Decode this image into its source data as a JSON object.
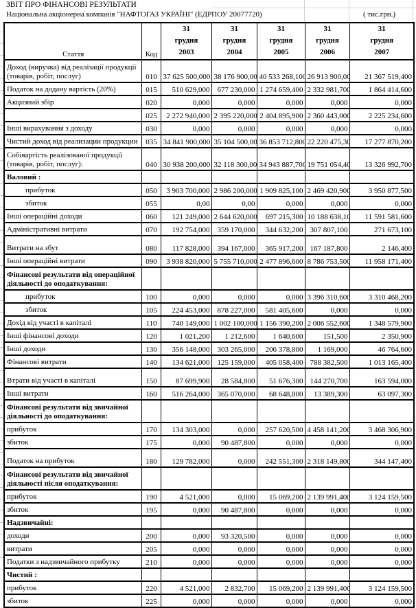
{
  "title": "ЗВІТ ПРО ФІНАНСОВІ РЕЗУЛЬТАТИ",
  "subtitle": "Національна акціонерна компанія \"НАФТОГАЗ УКРАЇНІ\"  (ЕДРПОУ 20077720)",
  "units": "( тис.грн.)",
  "colors": {
    "grid": "#000000",
    "faint_grid": "#d4d4d4",
    "text": "#000000",
    "background": "#ffffff"
  },
  "table": {
    "col_article": "Стаття",
    "col_code": "Код",
    "year_cols": [
      {
        "day": "31",
        "month": "грудня",
        "year": "2003"
      },
      {
        "day": "31",
        "month": "грудня",
        "year": "2004"
      },
      {
        "day": "31",
        "month": "грудня",
        "year": "2005"
      },
      {
        "day": "31",
        "month": "грудня",
        "year": "2006"
      },
      {
        "day": "31",
        "month": "грудня",
        "year": "2007"
      }
    ],
    "rows": [
      {
        "label": "Доход (виручка) від реалізації продукції (товарів, робіт, послуг)",
        "code": "010",
        "values": [
          "37 625 500,000",
          "38 176 900,000",
          "40 533 268,100",
          "26 913 900,000",
          "21 367 519,400"
        ],
        "h": 2
      },
      {
        "label": "Податок на додану вартість (20%)",
        "code": "015",
        "values": [
          "510 629,000",
          "677 230,000",
          "1 274 659,400",
          "2 332 981,700",
          "1 864 414,600"
        ]
      },
      {
        "label": "Акцизний збір",
        "code": "020",
        "values": [
          "0,000",
          "0,000",
          "0,000",
          "0,000",
          "0,000"
        ]
      },
      {
        "label": "",
        "code": "025",
        "values": [
          "2 272 940,000",
          "2 395 220,000",
          "2 404 895,900",
          "2 360 443,000",
          "2 225 234,600"
        ]
      },
      {
        "label": "Інші вирахування з доходу",
        "code": "030",
        "values": [
          "0,000",
          "0,000",
          "0,000",
          "0,000",
          "0,000"
        ]
      },
      {
        "label": "Чистий доход  від реализации продукции",
        "code": "035",
        "values": [
          "34 841 900,000",
          "35 104 500,000",
          "36 853 712,800",
          "22 220 475,300",
          "17 277 870,200"
        ]
      },
      {
        "label": "Собівартість реалізованої продукції (товарів, робіт, послуг):",
        "code": "040",
        "values": [
          "30 938 200,000",
          "32 118 300,000",
          "34 943 887,700",
          "19 751 054,400",
          "13 326 992,700"
        ],
        "h": 2
      },
      {
        "label": "Валовий :",
        "section": true
      },
      {
        "label": "прибуток",
        "code": "050",
        "indent": true,
        "values": [
          "3 903 700,000",
          "2 986 200,000",
          "1 909 825,100",
          "2 469 420,900",
          "3 950 877,500"
        ]
      },
      {
        "label": "збиток",
        "code": "055",
        "indent": true,
        "values": [
          "0,00",
          "0,00",
          "0,000",
          "0,000",
          "0,000"
        ]
      },
      {
        "label": "Інші операційні доходи",
        "code": "060",
        "values": [
          "121 249,000",
          "2 644 620,000",
          "697 215,300",
          "10 188 638,100",
          "11 591 581,600"
        ]
      },
      {
        "label": "Адміністративні витрати",
        "code": "070",
        "values": [
          "192 754,000",
          "359 170,000",
          "344 632,200",
          "307 807,100",
          "271 673,100"
        ]
      },
      {
        "label": "Витрати на збут",
        "code": "080",
        "tall": true,
        "values": [
          "117 828,000",
          "394 167,000",
          "365 917,200",
          "167 187,800",
          "2 146,400"
        ]
      },
      {
        "label": "Інші операційні витрати",
        "code": "090",
        "values": [
          "3 938 820,000",
          "5 755 710,000",
          "2 477 896,600",
          "8 786 753,500",
          "11 958 171,400"
        ]
      },
      {
        "label": "Фінансові результати від операційної діяльності до оподаткування:",
        "section": true,
        "h": 2
      },
      {
        "label": "прибуток",
        "code": "100",
        "indent": true,
        "values": [
          "0,000",
          "0,000",
          "0,000",
          "3 396 310,600",
          "3 310 468,200"
        ]
      },
      {
        "label": "збиток",
        "code": "105",
        "indent": true,
        "values": [
          "224 453,000",
          "878 227,000",
          "581 405,600",
          "0,000",
          "0,000"
        ]
      },
      {
        "label": "Дохід від участі в капіталі",
        "code": "110",
        "values": [
          "740 149,000",
          "1 002 100,000",
          "1 156 390,200",
          "2 006 552,600",
          "1 348 579,900"
        ]
      },
      {
        "label": "Інші фінансові доходи",
        "code": "120",
        "values": [
          "1 021,200",
          "1 212,600",
          "1 640,600",
          "151,500",
          "2 350,900"
        ]
      },
      {
        "label": "Інші доходи",
        "code": "130",
        "values": [
          "356 148,000",
          "303 265,000",
          "206 378,800",
          "1 169,000",
          "46 764,600"
        ]
      },
      {
        "label": "Фінансові витрати",
        "code": "140",
        "values": [
          "134 621,000",
          "125 159,000",
          "405 058,400",
          "788 382,500",
          "1 013 165,400"
        ]
      },
      {
        "label": "Втрати від участі в капіталі",
        "code": "150",
        "tall": true,
        "values": [
          "87 699,900",
          "28 584,800",
          "51 676,300",
          "144 270,700",
          "163 594,000"
        ]
      },
      {
        "label": "Інші витрати",
        "code": "160",
        "values": [
          "516 264,000",
          "365 070,000",
          "68 648,800",
          "13 389,300",
          "63 097,300"
        ]
      },
      {
        "label": "Фінансові результати від звичайної діяльності до оподаткування:",
        "section": true,
        "h": 2
      },
      {
        "label": "прибуток",
        "code": "170",
        "values": [
          "134 303,000",
          "0,000",
          "257 620,500",
          "4 458 141,200",
          "3 468 306,900"
        ]
      },
      {
        "label": "збиток",
        "code": "175",
        "values": [
          "0,000",
          "90 487,800",
          "0,000",
          "0,000",
          "0,000"
        ]
      },
      {
        "label": "Податок на прибуток",
        "code": "180",
        "tall": true,
        "values": [
          "129 782,000",
          "0,000",
          "242 551,300",
          "2 318 149,800",
          "344 147,400"
        ]
      },
      {
        "label": "Фінансові результати від звичайної діяльності після оподаткування:",
        "section": true,
        "h": 2
      },
      {
        "label": "прибуток",
        "code": "190",
        "values": [
          "4 521,000",
          "0,000",
          "15 069,200",
          "2 139 991,400",
          "3 124 159,500"
        ]
      },
      {
        "label": "збиток",
        "code": "195",
        "values": [
          "0,000",
          "90 487,800",
          "0,000",
          "0,000",
          "0,000"
        ]
      },
      {
        "label": "Надзвичайні:",
        "section": true
      },
      {
        "label": "доходи",
        "code": "200",
        "values": [
          "0,000",
          "93 320,500",
          "0,000",
          "0,000",
          "0,000"
        ]
      },
      {
        "label": "витрати",
        "code": "205",
        "values": [
          "0,000",
          "0,000",
          "0,000",
          "0,000",
          "0,000"
        ]
      },
      {
        "label": "Податки з надзвичайного прибутку",
        "code": "210",
        "values": [
          "0,000",
          "0,000",
          "0,000",
          "0,000",
          "0,000"
        ]
      },
      {
        "label": "Чистий :",
        "section": true
      },
      {
        "label": "прибуток",
        "code": "220",
        "values": [
          "4 521,000",
          "2 832,700",
          "15 069,200",
          "2 139 991,400",
          "3 124 159,500"
        ]
      },
      {
        "label": "збиток",
        "code": "225",
        "values": [
          "0,000",
          "0,000",
          "0,000",
          "0,000",
          "0,000"
        ]
      }
    ]
  }
}
